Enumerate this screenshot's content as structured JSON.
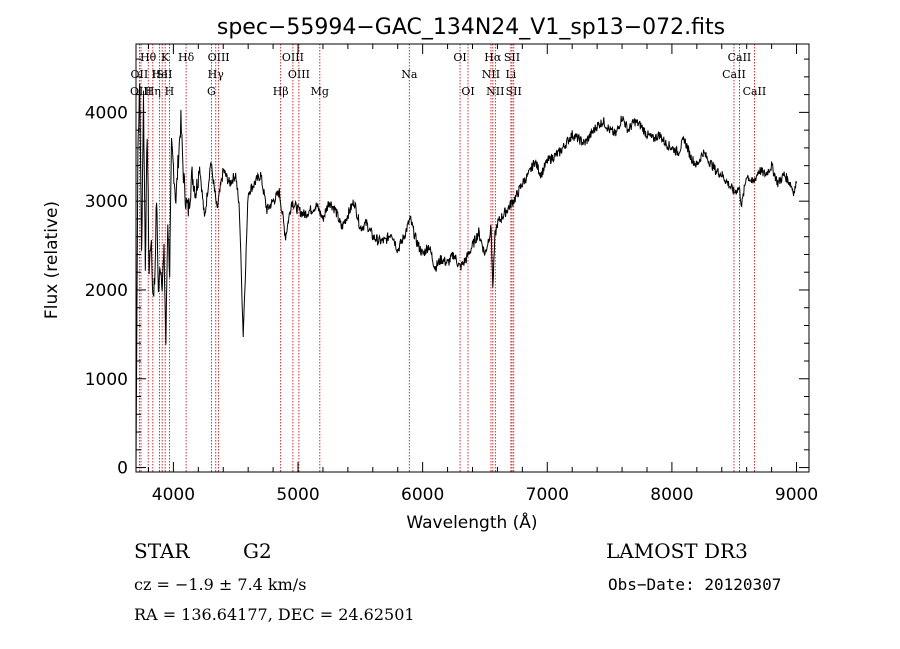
{
  "chart_data": {
    "type": "line",
    "title": "spec−55994−GAC_134N24_V1_sp13−072.fits",
    "xlabel": "Wavelength (Å)",
    "ylabel": "Flux (relative)",
    "xlim": [
      3700,
      9100
    ],
    "ylim": [
      -50,
      4770
    ],
    "xticks": [
      4000,
      5000,
      6000,
      7000,
      8000,
      9000
    ],
    "yticks": [
      0,
      1000,
      2000,
      3000,
      4000
    ],
    "grid": false,
    "series": [
      {
        "x": [
          3700,
          3715,
          3730,
          3745,
          3760,
          3775,
          3790,
          3805,
          3820,
          3835,
          3850,
          3865,
          3880,
          3895,
          3910,
          3925,
          3940,
          3955,
          3970,
          3985,
          4000,
          4020,
          4040,
          4060,
          4080,
          4100,
          4120,
          4150,
          4180,
          4210,
          4250,
          4300,
          4350,
          4400,
          4450,
          4500,
          4530,
          4560,
          4600,
          4650,
          4700,
          4750,
          4800,
          4850,
          4900,
          4950,
          5000,
          5050,
          5100,
          5150,
          5200,
          5250,
          5300,
          5350,
          5400,
          5450,
          5500,
          5550,
          5600,
          5650,
          5700,
          5750,
          5800,
          5850,
          5900,
          5950,
          6000,
          6050,
          6100,
          6150,
          6200,
          6250,
          6300,
          6350,
          6400,
          6450,
          6500,
          6550,
          6563,
          6580,
          6600,
          6650,
          6700,
          6750,
          6800,
          6850,
          6900,
          6950,
          7000,
          7050,
          7100,
          7150,
          7200,
          7250,
          7300,
          7350,
          7400,
          7450,
          7500,
          7550,
          7600,
          7650,
          7700,
          7750,
          7800,
          7850,
          7900,
          7950,
          8000,
          8050,
          8100,
          8150,
          8200,
          8250,
          8300,
          8350,
          8400,
          8450,
          8500,
          8540,
          8560,
          8600,
          8650,
          8700,
          8750,
          8800,
          8850,
          8900,
          8950,
          8980,
          9000
        ],
        "y": [
          0,
          3600,
          4300,
          2400,
          4200,
          2300,
          3800,
          2200,
          2600,
          1950,
          2100,
          3050,
          1950,
          2300,
          2100,
          2400,
          1400,
          2800,
          2200,
          3600,
          3400,
          3000,
          3500,
          3900,
          3300,
          3000,
          2900,
          3300,
          3100,
          3400,
          2800,
          3450,
          2900,
          3350,
          3200,
          3300,
          2900,
          1500,
          3100,
          3200,
          3300,
          2900,
          3000,
          3100,
          2600,
          3000,
          2900,
          2850,
          2900,
          2950,
          2800,
          3000,
          2900,
          2700,
          2850,
          3000,
          2700,
          2750,
          2600,
          2550,
          2550,
          2650,
          2450,
          2600,
          2800,
          2550,
          2400,
          2500,
          2250,
          2350,
          2300,
          2400,
          2250,
          2350,
          2500,
          2650,
          2400,
          2700,
          2000,
          2600,
          2750,
          2850,
          2950,
          3050,
          3200,
          3300,
          3450,
          3300,
          3450,
          3500,
          3550,
          3650,
          3750,
          3700,
          3650,
          3750,
          3850,
          3900,
          3800,
          3750,
          3950,
          3800,
          3900,
          3850,
          3750,
          3700,
          3750,
          3650,
          3600,
          3550,
          3700,
          3500,
          3400,
          3550,
          3450,
          3350,
          3300,
          3200,
          3100,
          3150,
          2950,
          3300,
          3200,
          3350,
          3300,
          3400,
          3200,
          3300,
          3200,
          3100,
          3200
        ]
      }
    ],
    "spectral_lines": [
      {
        "label": "Hθ",
        "x": 3798,
        "row": 1
      },
      {
        "label": "OII",
        "x": 3727,
        "row": 2
      },
      {
        "label": "OIII",
        "x": 3740,
        "row": 3
      },
      {
        "label": "He",
        "x": 3889,
        "row": 2
      },
      {
        "label": "K",
        "x": 3934,
        "row": 1
      },
      {
        "label": "Hη",
        "x": 3835,
        "row": 3
      },
      {
        "label": "ISII",
        "x": 3910,
        "row": 2
      },
      {
        "label": "H",
        "x": 3968,
        "row": 3
      },
      {
        "label": "Hδ",
        "x": 4102,
        "row": 1
      },
      {
        "label": "OIII",
        "x": 4363,
        "row": 1
      },
      {
        "label": "Hγ",
        "x": 4340,
        "row": 2
      },
      {
        "label": "G",
        "x": 4305,
        "row": 3
      },
      {
        "label": "Hβ",
        "x": 4861,
        "row": 3
      },
      {
        "label": "OIII",
        "x": 4959,
        "row": 1
      },
      {
        "label": "OIII",
        "x": 5007,
        "row": 2
      },
      {
        "label": "Mg",
        "x": 5175,
        "row": 3
      },
      {
        "label": "Na",
        "x": 5893,
        "row": 2
      },
      {
        "label": "OI",
        "x": 6300,
        "row": 1
      },
      {
        "label": "OI",
        "x": 6364,
        "row": 3
      },
      {
        "label": "Hα",
        "x": 6563,
        "row": 1
      },
      {
        "label": "NII",
        "x": 6548,
        "row": 2
      },
      {
        "label": "NII",
        "x": 6583,
        "row": 3
      },
      {
        "label": "SII",
        "x": 6717,
        "row": 1
      },
      {
        "label": "Li",
        "x": 6708,
        "row": 2
      },
      {
        "label": "SII",
        "x": 6731,
        "row": 3
      },
      {
        "label": "CaII",
        "x": 8542,
        "row": 1
      },
      {
        "label": "CaII",
        "x": 8498,
        "row": 2
      },
      {
        "label": "CaII",
        "x": 8662,
        "row": 3
      }
    ]
  },
  "info": {
    "object_class": "STAR",
    "subclass": "G2",
    "survey": "LAMOST DR3",
    "redshift": "cz = −1.9 ± 7.4 km/s",
    "obs_date": "Obs−Date: 20120307",
    "coords": "RA = 136.64177, DEC =  24.62501"
  },
  "colors": {
    "spectrum": "#000000",
    "line_marker": "#c00000",
    "background": "#ffffff"
  }
}
